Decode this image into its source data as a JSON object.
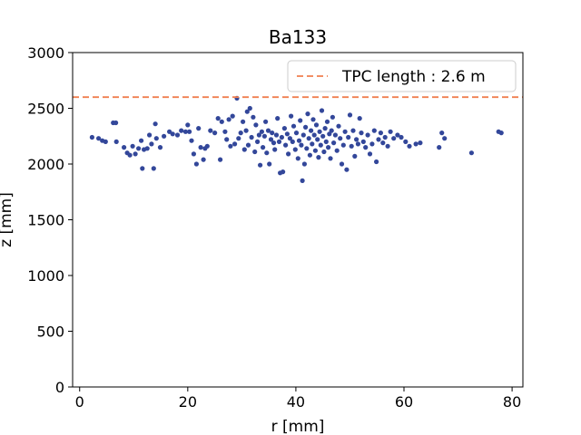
{
  "chart_data": {
    "type": "scatter",
    "title": "Ba133",
    "xlabel": "r [mm]",
    "ylabel": "z [mm]",
    "xlim": [
      -1.3,
      82.0
    ],
    "ylim": [
      0,
      3000
    ],
    "xticks": [
      0,
      20,
      40,
      60,
      80
    ],
    "yticks": [
      0,
      500,
      1000,
      1500,
      2000,
      2500,
      3000
    ],
    "grid": false,
    "legend_position": "top-right",
    "reference_line": {
      "label": "TPC length : 2.6 m",
      "y": 2600,
      "color": "#f07f4f",
      "style": "dashed"
    },
    "series": [
      {
        "color": "#33479a",
        "points": [
          [
            2.3,
            2240
          ],
          [
            3.5,
            2230
          ],
          [
            4.2,
            2210
          ],
          [
            4.8,
            2200
          ],
          [
            6.2,
            2370
          ],
          [
            6.7,
            2370
          ],
          [
            6.8,
            2200
          ],
          [
            8.2,
            2150
          ],
          [
            8.8,
            2100
          ],
          [
            9.3,
            2080
          ],
          [
            9.8,
            2160
          ],
          [
            10.3,
            2090
          ],
          [
            10.9,
            2140
          ],
          [
            11.4,
            2210
          ],
          [
            11.6,
            1960
          ],
          [
            11.9,
            2130
          ],
          [
            12.5,
            2140
          ],
          [
            12.9,
            2260
          ],
          [
            13.3,
            2180
          ],
          [
            13.7,
            1960
          ],
          [
            14.0,
            2360
          ],
          [
            14.2,
            2230
          ],
          [
            14.9,
            2150
          ],
          [
            15.6,
            2250
          ],
          [
            16.6,
            2290
          ],
          [
            17.2,
            2270
          ],
          [
            18.1,
            2260
          ],
          [
            18.8,
            2300
          ],
          [
            19.6,
            2290
          ],
          [
            20.0,
            2350
          ],
          [
            20.3,
            2290
          ],
          [
            20.7,
            2210
          ],
          [
            21.1,
            2090
          ],
          [
            21.6,
            2000
          ],
          [
            22.0,
            2320
          ],
          [
            22.4,
            2150
          ],
          [
            22.9,
            2040
          ],
          [
            23.2,
            2140
          ],
          [
            23.6,
            2160
          ],
          [
            24.2,
            2300
          ],
          [
            25.0,
            2280
          ],
          [
            25.6,
            2410
          ],
          [
            26.0,
            2040
          ],
          [
            26.3,
            2380
          ],
          [
            26.9,
            2290
          ],
          [
            27.2,
            2220
          ],
          [
            27.6,
            2400
          ],
          [
            27.9,
            2160
          ],
          [
            28.3,
            2430
          ],
          [
            28.7,
            2180
          ],
          [
            29.1,
            2590
          ],
          [
            29.4,
            2230
          ],
          [
            29.8,
            2280
          ],
          [
            30.2,
            2380
          ],
          [
            30.5,
            2130
          ],
          [
            30.8,
            2300
          ],
          [
            31.0,
            2470
          ],
          [
            31.2,
            2170
          ],
          [
            31.5,
            2500
          ],
          [
            31.8,
            2240
          ],
          [
            32.1,
            2420
          ],
          [
            32.4,
            2110
          ],
          [
            32.6,
            2350
          ],
          [
            32.9,
            2200
          ],
          [
            33.2,
            2260
          ],
          [
            33.4,
            1990
          ],
          [
            33.7,
            2290
          ],
          [
            33.9,
            2150
          ],
          [
            34.2,
            2250
          ],
          [
            34.4,
            2380
          ],
          [
            34.6,
            2100
          ],
          [
            34.9,
            2300
          ],
          [
            35.1,
            2000
          ],
          [
            35.4,
            2220
          ],
          [
            35.6,
            2280
          ],
          [
            35.9,
            2190
          ],
          [
            36.1,
            2130
          ],
          [
            36.4,
            2260
          ],
          [
            36.6,
            2410
          ],
          [
            36.9,
            2200
          ],
          [
            37.1,
            1920
          ],
          [
            37.4,
            2240
          ],
          [
            37.6,
            1930
          ],
          [
            37.9,
            2320
          ],
          [
            38.1,
            2170
          ],
          [
            38.4,
            2270
          ],
          [
            38.6,
            2090
          ],
          [
            38.9,
            2230
          ],
          [
            39.1,
            2430
          ],
          [
            39.4,
            2200
          ],
          [
            39.6,
            2340
          ],
          [
            39.9,
            2130
          ],
          [
            40.1,
            2280
          ],
          [
            40.4,
            2050
          ],
          [
            40.6,
            2210
          ],
          [
            40.8,
            2390
          ],
          [
            41.0,
            2170
          ],
          [
            41.2,
            1850
          ],
          [
            41.4,
            2260
          ],
          [
            41.6,
            2000
          ],
          [
            41.8,
            2330
          ],
          [
            42.0,
            2140
          ],
          [
            42.2,
            2450
          ],
          [
            42.4,
            2230
          ],
          [
            42.6,
            2080
          ],
          [
            42.8,
            2300
          ],
          [
            43.0,
            2180
          ],
          [
            43.2,
            2400
          ],
          [
            43.4,
            2260
          ],
          [
            43.6,
            2120
          ],
          [
            43.8,
            2350
          ],
          [
            44.0,
            2220
          ],
          [
            44.2,
            2060
          ],
          [
            44.4,
            2290
          ],
          [
            44.6,
            2170
          ],
          [
            44.8,
            2480
          ],
          [
            45.0,
            2250
          ],
          [
            45.2,
            2110
          ],
          [
            45.4,
            2320
          ],
          [
            45.6,
            2200
          ],
          [
            45.8,
            2380
          ],
          [
            46.0,
            2150
          ],
          [
            46.2,
            2270
          ],
          [
            46.4,
            2050
          ],
          [
            46.6,
            2300
          ],
          [
            46.8,
            2420
          ],
          [
            47.0,
            2190
          ],
          [
            47.3,
            2260
          ],
          [
            47.6,
            2120
          ],
          [
            47.9,
            2340
          ],
          [
            48.2,
            2230
          ],
          [
            48.5,
            2000
          ],
          [
            48.8,
            2170
          ],
          [
            49.1,
            2290
          ],
          [
            49.4,
            1950
          ],
          [
            49.7,
            2240
          ],
          [
            50.0,
            2440
          ],
          [
            50.3,
            2160
          ],
          [
            50.6,
            2300
          ],
          [
            50.9,
            2070
          ],
          [
            51.2,
            2220
          ],
          [
            51.5,
            2180
          ],
          [
            51.8,
            2410
          ],
          [
            52.1,
            2280
          ],
          [
            52.5,
            2200
          ],
          [
            52.9,
            2150
          ],
          [
            53.3,
            2260
          ],
          [
            53.7,
            2090
          ],
          [
            54.1,
            2180
          ],
          [
            54.5,
            2300
          ],
          [
            54.9,
            2020
          ],
          [
            55.3,
            2220
          ],
          [
            55.7,
            2280
          ],
          [
            56.1,
            2190
          ],
          [
            56.5,
            2240
          ],
          [
            57.0,
            2160
          ],
          [
            57.5,
            2290
          ],
          [
            58.1,
            2230
          ],
          [
            58.8,
            2260
          ],
          [
            59.5,
            2240
          ],
          [
            60.3,
            2200
          ],
          [
            61.0,
            2160
          ],
          [
            62.2,
            2180
          ],
          [
            63.0,
            2190
          ],
          [
            66.5,
            2150
          ],
          [
            67.0,
            2280
          ],
          [
            67.5,
            2230
          ],
          [
            72.5,
            2100
          ],
          [
            77.5,
            2290
          ],
          [
            78.0,
            2280
          ]
        ]
      }
    ]
  }
}
